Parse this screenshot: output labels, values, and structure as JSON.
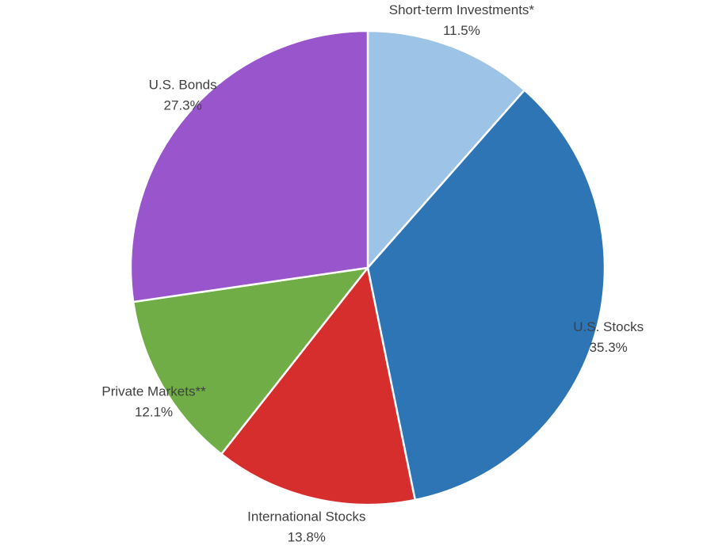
{
  "chart_data": {
    "type": "pie",
    "categories": [
      "Short-term Investments*",
      "U.S. Stocks",
      "International Stocks",
      "Private Markets**",
      "U.S. Bonds"
    ],
    "values": [
      11.5,
      35.3,
      13.8,
      12.1,
      27.3
    ],
    "value_labels": [
      "11.5%",
      "35.3%",
      "13.8%",
      "12.1%",
      "27.3%"
    ],
    "colors": [
      "#9dc3e6",
      "#2e75b6",
      "#d62d2d",
      "#70ad47",
      "#9955cc"
    ]
  }
}
